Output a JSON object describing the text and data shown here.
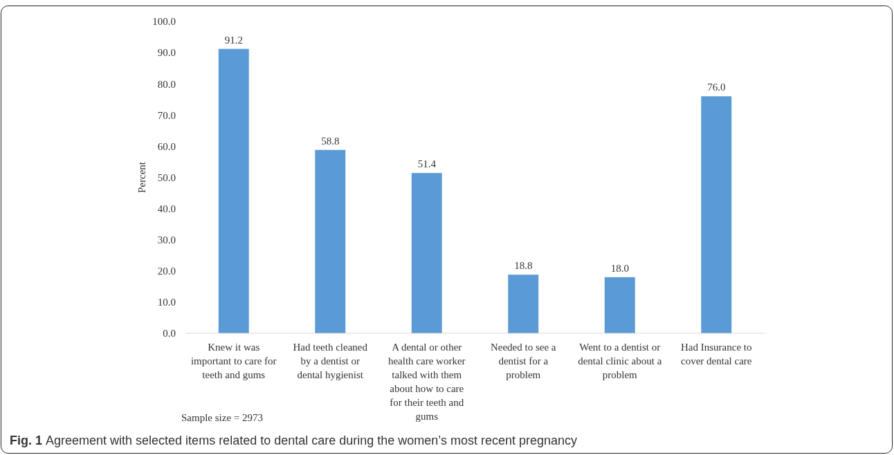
{
  "chart_data": {
    "type": "bar",
    "title": "Fig. 1 Agreement with selected items related to dental care during the women’s most recent pregnancy",
    "ylabel": "Percent",
    "annotations": [
      "Sample size = 2973"
    ],
    "categories": [
      "Knew it was important to care for teeth and gums",
      "Had teeth cleaned by a dentist or dental hygienist",
      "A dental or other health care worker talked with them about how to care for their teeth and gums",
      "Needed to see a dentist for a problem",
      "Went to a dentist or dental clinic about a problem",
      "Had Insurance to cover dental care"
    ],
    "values": [
      91.2,
      58.8,
      51.4,
      18.8,
      18.0,
      76.0
    ],
    "color": "#5b9bd5",
    "ylim": [
      0,
      100
    ],
    "yticks": [
      {
        "value": 0,
        "label": "0.0"
      },
      {
        "value": 10,
        "label": "10.0"
      },
      {
        "value": 20,
        "label": "20.0"
      },
      {
        "value": 30,
        "label": "30.0"
      },
      {
        "value": 40,
        "label": "40.0"
      },
      {
        "value": 50,
        "label": "50.0"
      },
      {
        "value": 60,
        "label": "60.0"
      },
      {
        "value": 70,
        "label": "70.0"
      },
      {
        "value": 80,
        "label": "80.0"
      },
      {
        "value": 90,
        "label": "90.0"
      },
      {
        "value": 100,
        "label": "100.0"
      }
    ],
    "value_labels": [
      "91.2",
      "58.8",
      "51.4",
      "18.8",
      "18.0",
      "76.0"
    ],
    "grid": false
  }
}
